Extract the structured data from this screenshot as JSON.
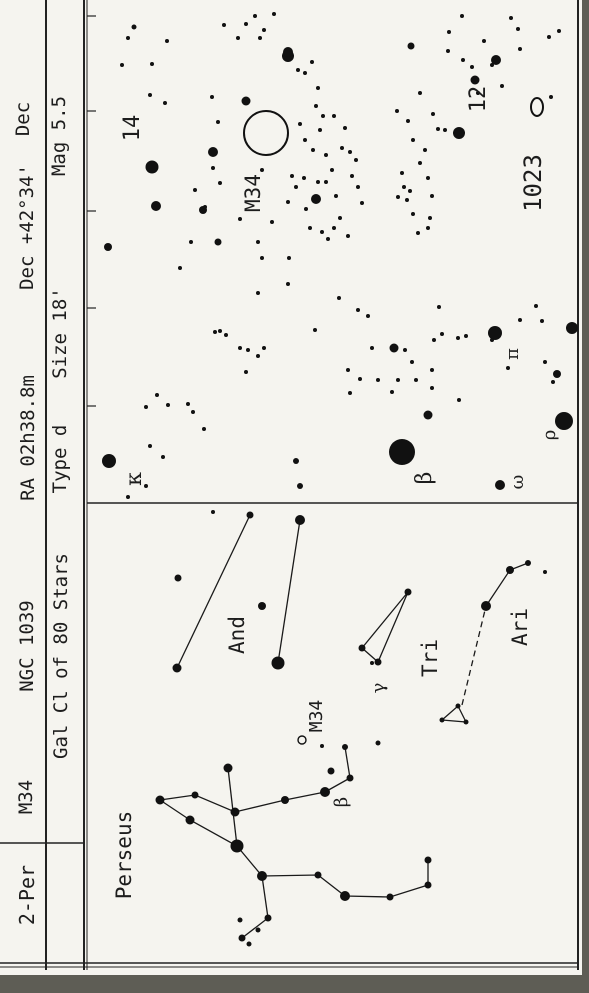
{
  "header": {
    "card_id": "2-Per",
    "object": "M34",
    "catalog": "NGC 1039",
    "ra": "RA 02h38.8m",
    "dec": "Dec +42°34'",
    "type_line": "Gal Cl of 80 Stars",
    "type_class": "Type d",
    "size": "Size 18'",
    "mag": "Mag 5.5",
    "axis_label": "Dec"
  },
  "finder_chart": {
    "labels": {
      "cluster": "M34",
      "ngc": "1023",
      "star14": "14",
      "star12": "12",
      "kappa": "κ",
      "beta": "β",
      "omega": "ω",
      "rho": "ρ",
      "pi": "π"
    }
  },
  "overview_chart": {
    "labels": {
      "perseus": "Perseus",
      "and": "And",
      "tri": "Tri",
      "ari": "Ari",
      "m34": "M34",
      "beta": "β",
      "gamma": "γ"
    }
  },
  "colors": {
    "paper": "#f5f4ef",
    "ink": "#1d1d1d",
    "background": "#5e5d55"
  }
}
